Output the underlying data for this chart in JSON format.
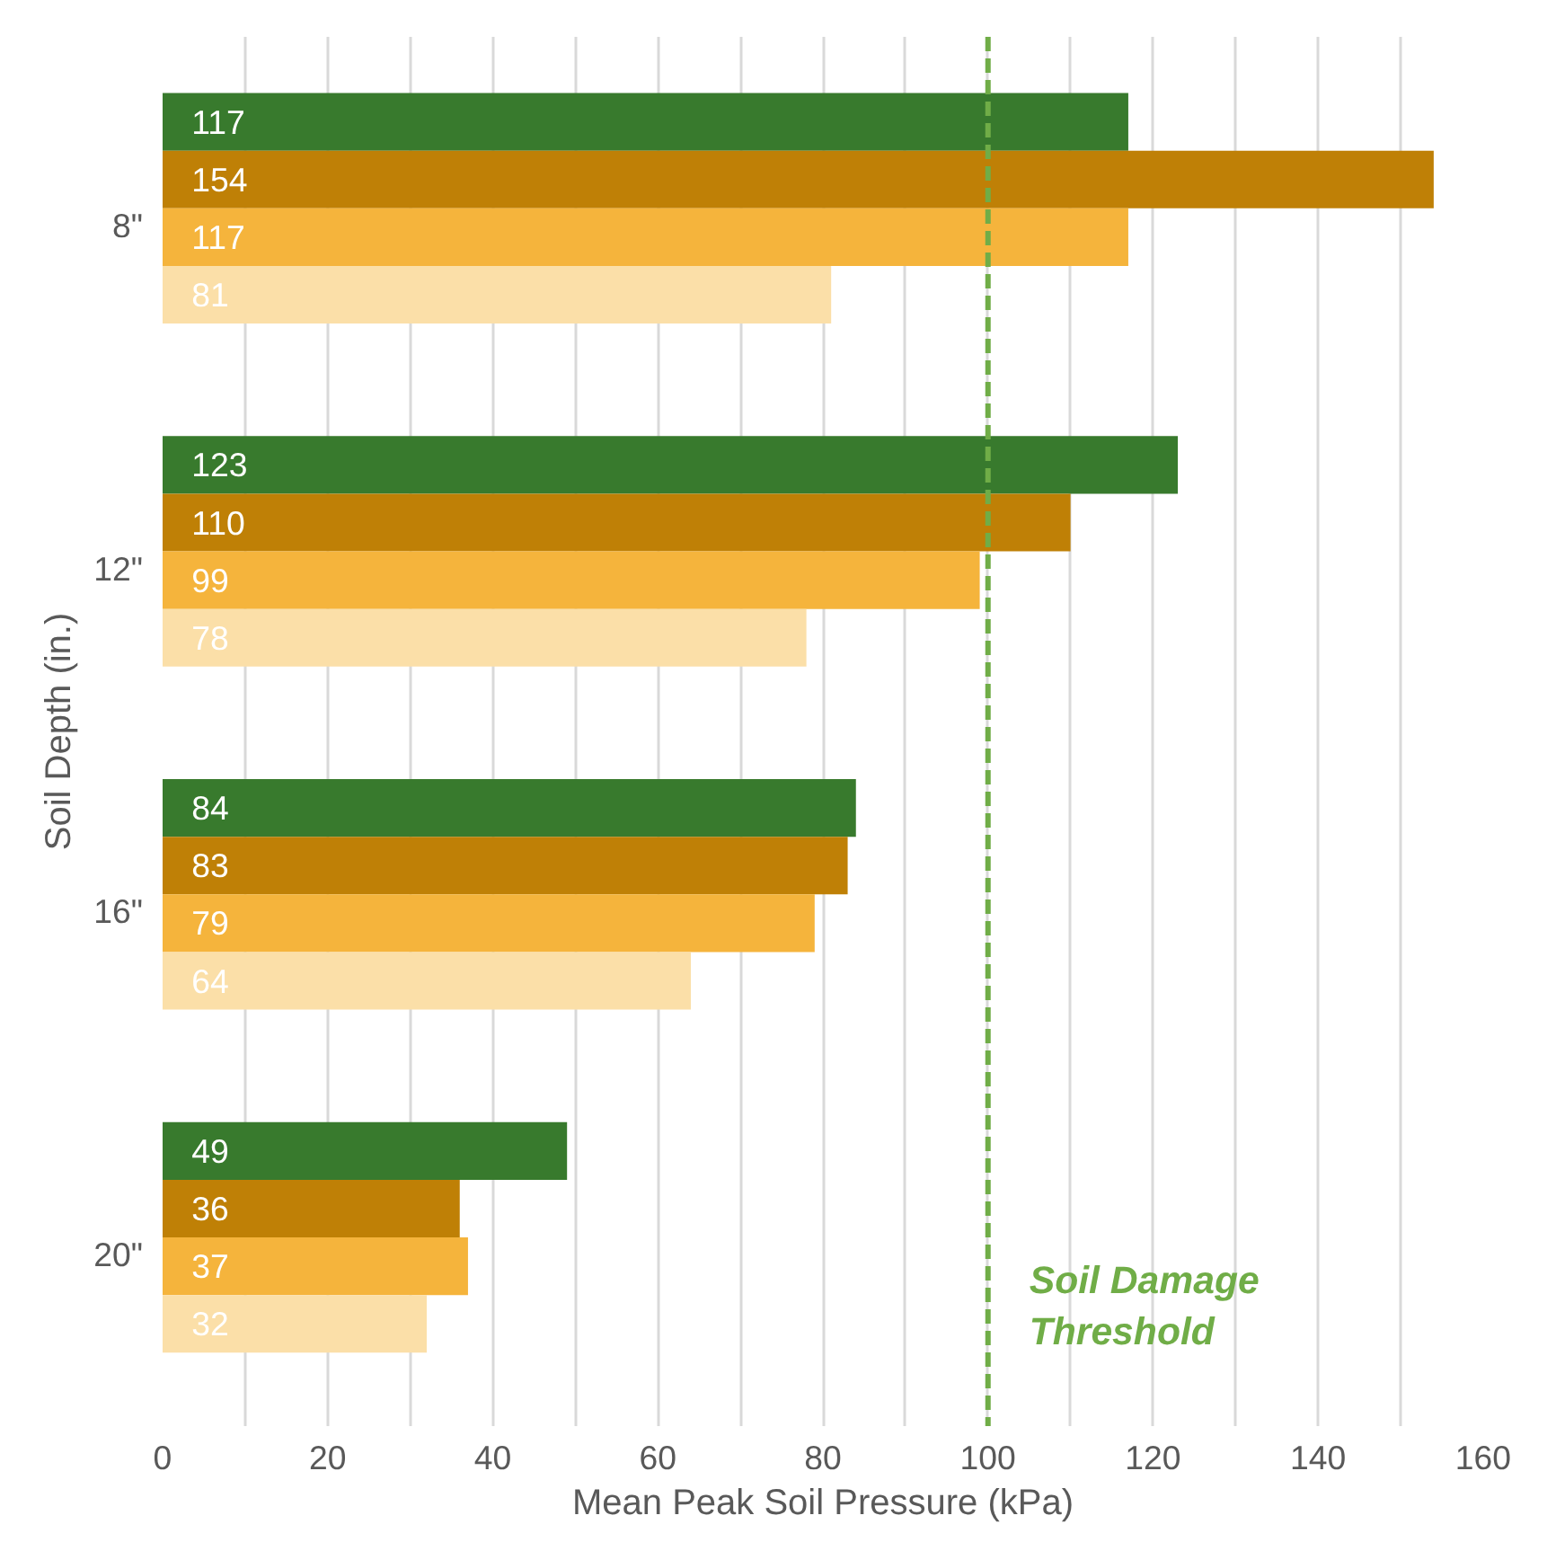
{
  "chart_data": {
    "type": "bar",
    "orientation": "horizontal",
    "xlabel": "Mean Peak Soil Pressure (kPa)",
    "ylabel": "Soil Depth (in.)",
    "categories": [
      "8\"",
      "12\"",
      "16\"",
      "20\""
    ],
    "series": [
      {
        "color": "#387a2d",
        "values": [
          117,
          123,
          84,
          49
        ]
      },
      {
        "color": "#bf8006",
        "values": [
          154,
          110,
          83,
          36
        ]
      },
      {
        "color": "#f5b43c",
        "values": [
          117,
          99,
          79,
          37
        ]
      },
      {
        "color": "#fbdfa8",
        "values": [
          81,
          78,
          64,
          32
        ]
      }
    ],
    "xlim": [
      0,
      160
    ],
    "xticks": [
      0,
      {
        "value": 10,
        "label": null
      },
      20,
      {
        "value": 30,
        "label": null
      },
      40,
      {
        "value": 50,
        "label": null
      },
      60,
      {
        "value": 70,
        "label": null
      },
      80,
      {
        "value": 90,
        "label": null
      },
      100,
      {
        "value": 110,
        "label": null
      },
      120,
      {
        "value": 130,
        "label": null
      },
      140,
      {
        "value": 150,
        "label": null
      },
      160
    ],
    "grid": "x",
    "data_labels": true,
    "ref_lines": [
      {
        "axis": "x",
        "value": 100,
        "label": "Soil Damage\nThreshold",
        "color": "#70ad47",
        "line_style": "dashed"
      }
    ]
  }
}
